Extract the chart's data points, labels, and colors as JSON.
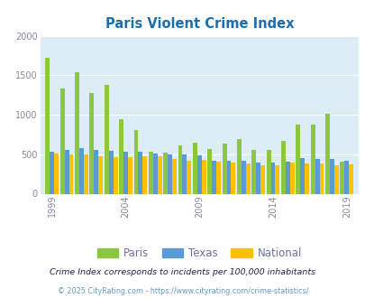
{
  "title": "Paris Violent Crime Index",
  "title_color": "#1a6faf",
  "subtitle": "Crime Index corresponds to incidents per 100,000 inhabitants",
  "footer": "© 2025 CityRating.com - https://www.cityrating.com/crime-statistics/",
  "years": [
    1999,
    2000,
    2001,
    2002,
    2003,
    2004,
    2005,
    2006,
    2007,
    2008,
    2009,
    2010,
    2011,
    2012,
    2013,
    2014,
    2015,
    2016,
    2017,
    2018,
    2019
  ],
  "paris": [
    1720,
    1330,
    1540,
    1280,
    1380,
    940,
    810,
    530,
    525,
    610,
    650,
    570,
    640,
    690,
    550,
    550,
    670,
    870,
    870,
    1010,
    410
  ],
  "texas": [
    535,
    555,
    580,
    550,
    540,
    535,
    530,
    505,
    500,
    495,
    490,
    420,
    415,
    415,
    395,
    400,
    410,
    450,
    445,
    440,
    415
  ],
  "national": [
    510,
    500,
    500,
    475,
    465,
    460,
    480,
    470,
    440,
    415,
    430,
    410,
    395,
    385,
    365,
    365,
    390,
    380,
    385,
    365,
    370
  ],
  "paris_color": "#8dc63f",
  "texas_color": "#5b9bd5",
  "national_color": "#ffc000",
  "bg_color": "#ddedf5",
  "ylim": [
    0,
    2000
  ],
  "yticks": [
    0,
    500,
    1000,
    1500,
    2000
  ],
  "bar_width": 0.3,
  "legend_labels": [
    "Paris",
    "Texas",
    "National"
  ],
  "legend_fontsize": 8.5,
  "axis_label_color": "#7070a0",
  "tick_label_color": "#888899",
  "grid_color": "#ffffff",
  "subtitle_color": "#222244",
  "footer_color": "#6699bb"
}
